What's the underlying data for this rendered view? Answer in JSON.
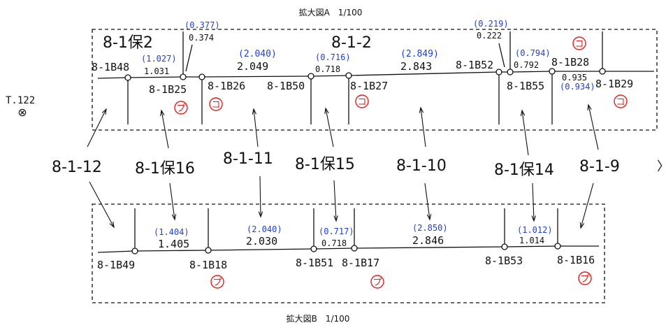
{
  "detail_a": {
    "title": "拡大図A　1/100",
    "block_labels": [
      "8-1保2",
      "8-1-2"
    ],
    "points": [
      "8-1B48",
      "8-1B25",
      "8-1B26",
      "8-1B50",
      "8-1B27",
      "8-1B52",
      "8-1B55",
      "8-1B28",
      "8-1B29"
    ],
    "measurements": [
      {
        "registered": "(0.377)",
        "measured": "0.374"
      },
      {
        "registered": "(1.027)",
        "measured": "1.031"
      },
      {
        "registered": "(2.040)",
        "measured": "2.049"
      },
      {
        "registered": "(0.716)",
        "measured": "0.718"
      },
      {
        "registered": "(2.849)",
        "measured": "2.843"
      },
      {
        "registered": "(0.219)",
        "measured": "0.222"
      },
      {
        "registered": "(0.794)",
        "measured": "0.792"
      },
      {
        "registered": "(0.934)",
        "measured": "0.935"
      }
    ],
    "marks": [
      "プ",
      "コ",
      "コ",
      "コ",
      "コ"
    ]
  },
  "detail_b": {
    "title": "拡大図B　1/100",
    "points": [
      "8-1B49",
      "8-1B18",
      "8-1B51",
      "8-1B17",
      "8-1B53",
      "8-1B16"
    ],
    "measurements": [
      {
        "registered": "(1.404)",
        "measured": "1.405"
      },
      {
        "registered": "(2.040)",
        "measured": "2.030"
      },
      {
        "registered": "(0.717)",
        "measured": "0.718"
      },
      {
        "registered": "(2.850)",
        "measured": "2.846"
      },
      {
        "registered": "(1.012)",
        "measured": "1.014"
      }
    ],
    "marks": [
      "プ",
      "プ",
      "プ"
    ]
  },
  "parcels": [
    "8-1-12",
    "8-1保16",
    "8-1-11",
    "8-1保15",
    "8-1-10",
    "8-1保14",
    "8-1-9"
  ],
  "benchmark": {
    "label": "T.122",
    "symbol": "⊗"
  },
  "next_arrow": "〉",
  "colors": {
    "line": "#111111",
    "registered": "#1f3fd6",
    "mark": "#e0201c"
  }
}
